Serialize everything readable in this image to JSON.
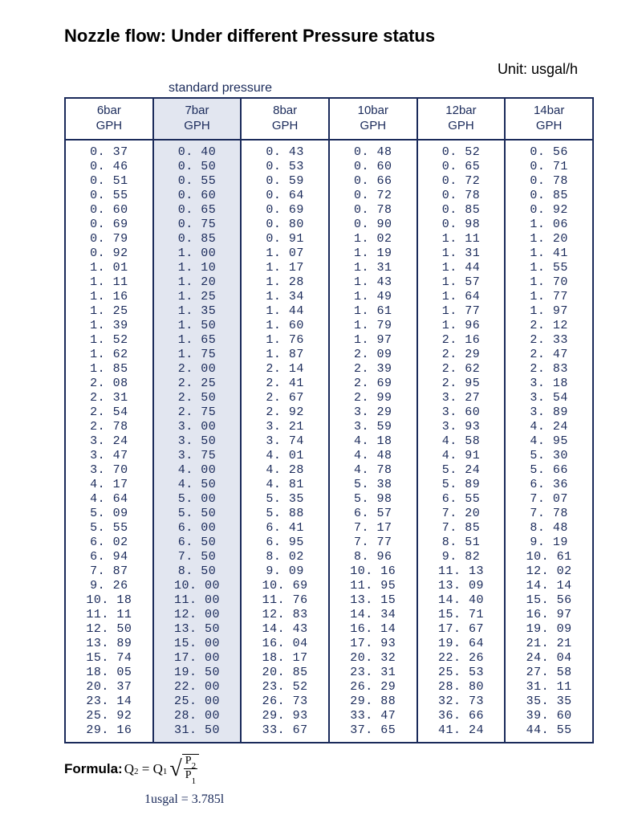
{
  "title": "Nozzle flow: Under different Pressure status",
  "unit_label": "Unit: usgal/h",
  "standard_pressure_label": "standard pressure",
  "formula_label": "Formula:",
  "formula": {
    "lhs": "Q",
    "lhs_sub": "2",
    "q1": "Q",
    "q1_sub": "1",
    "num": "P",
    "num_sub": "2",
    "den": "P",
    "den_sub": "1"
  },
  "conversion": "1usgal = 3.785l",
  "table": {
    "highlight_col_index": 1,
    "highlight_bg": "#e2e6f0",
    "border_color": "#1a2a5a",
    "text_color": "#1a2a5a",
    "headers": [
      {
        "bar": "6bar",
        "unit": "GPH"
      },
      {
        "bar": "7bar",
        "unit": "GPH"
      },
      {
        "bar": "8bar",
        "unit": "GPH"
      },
      {
        "bar": "10bar",
        "unit": "GPH"
      },
      {
        "bar": "12bar",
        "unit": "GPH"
      },
      {
        "bar": "14bar",
        "unit": "GPH"
      }
    ],
    "rows": [
      [
        "0.37",
        "0.40",
        "0.43",
        "0.48",
        "0.52",
        "0.56"
      ],
      [
        "0.46",
        "0.50",
        "0.53",
        "0.60",
        "0.65",
        "0.71"
      ],
      [
        "0.51",
        "0.55",
        "0.59",
        "0.66",
        "0.72",
        "0.78"
      ],
      [
        "0.55",
        "0.60",
        "0.64",
        "0.72",
        "0.78",
        "0.85"
      ],
      [
        "0.60",
        "0.65",
        "0.69",
        "0.78",
        "0.85",
        "0.92"
      ],
      [
        "0.69",
        "0.75",
        "0.80",
        "0.90",
        "0.98",
        "1.06"
      ],
      [
        "0.79",
        "0.85",
        "0.91",
        "1.02",
        "1.11",
        "1.20"
      ],
      [
        "0.92",
        "1.00",
        "1.07",
        "1.19",
        "1.31",
        "1.41"
      ],
      [
        "1.01",
        "1.10",
        "1.17",
        "1.31",
        "1.44",
        "1.55"
      ],
      [
        "1.11",
        "1.20",
        "1.28",
        "1.43",
        "1.57",
        "1.70"
      ],
      [
        "1.16",
        "1.25",
        "1.34",
        "1.49",
        "1.64",
        "1.77"
      ],
      [
        "1.25",
        "1.35",
        "1.44",
        "1.61",
        "1.77",
        "1.97"
      ],
      [
        "1.39",
        "1.50",
        "1.60",
        "1.79",
        "1.96",
        "2.12"
      ],
      [
        "1.52",
        "1.65",
        "1.76",
        "1.97",
        "2.16",
        "2.33"
      ],
      [
        "1.62",
        "1.75",
        "1.87",
        "2.09",
        "2.29",
        "2.47"
      ],
      [
        "1.85",
        "2.00",
        "2.14",
        "2.39",
        "2.62",
        "2.83"
      ],
      [
        "2.08",
        "2.25",
        "2.41",
        "2.69",
        "2.95",
        "3.18"
      ],
      [
        "2.31",
        "2.50",
        "2.67",
        "2.99",
        "3.27",
        "3.54"
      ],
      [
        "2.54",
        "2.75",
        "2.92",
        "3.29",
        "3.60",
        "3.89"
      ],
      [
        "2.78",
        "3.00",
        "3.21",
        "3.59",
        "3.93",
        "4.24"
      ],
      [
        "3.24",
        "3.50",
        "3.74",
        "4.18",
        "4.58",
        "4.95"
      ],
      [
        "3.47",
        "3.75",
        "4.01",
        "4.48",
        "4.91",
        "5.30"
      ],
      [
        "3.70",
        "4.00",
        "4.28",
        "4.78",
        "5.24",
        "5.66"
      ],
      [
        "4.17",
        "4.50",
        "4.81",
        "5.38",
        "5.89",
        "6.36"
      ],
      [
        "4.64",
        "5.00",
        "5.35",
        "5.98",
        "6.55",
        "7.07"
      ],
      [
        "5.09",
        "5.50",
        "5.88",
        "6.57",
        "7.20",
        "7.78"
      ],
      [
        "5.55",
        "6.00",
        "6.41",
        "7.17",
        "7.85",
        "8.48"
      ],
      [
        "6.02",
        "6.50",
        "6.95",
        "7.77",
        "8.51",
        "9.19"
      ],
      [
        "6.94",
        "7.50",
        "8.02",
        "8.96",
        "9.82",
        "10.61"
      ],
      [
        "7.87",
        "8.50",
        "9.09",
        "10.16",
        "11.13",
        "12.02"
      ],
      [
        "9.26",
        "10.00",
        "10.69",
        "11.95",
        "13.09",
        "14.14"
      ],
      [
        "10.18",
        "11.00",
        "11.76",
        "13.15",
        "14.40",
        "15.56"
      ],
      [
        "11.11",
        "12.00",
        "12.83",
        "14.34",
        "15.71",
        "16.97"
      ],
      [
        "12.50",
        "13.50",
        "14.43",
        "16.14",
        "17.67",
        "19.09"
      ],
      [
        "13.89",
        "15.00",
        "16.04",
        "17.93",
        "19.64",
        "21.21"
      ],
      [
        "15.74",
        "17.00",
        "18.17",
        "20.32",
        "22.26",
        "24.04"
      ],
      [
        "18.05",
        "19.50",
        "20.85",
        "23.31",
        "25.53",
        "27.58"
      ],
      [
        "20.37",
        "22.00",
        "23.52",
        "26.29",
        "28.80",
        "31.11"
      ],
      [
        "23.14",
        "25.00",
        "26.73",
        "29.88",
        "32.73",
        "35.35"
      ],
      [
        "25.92",
        "28.00",
        "29.93",
        "33.47",
        "36.66",
        "39.60"
      ],
      [
        "29.16",
        "31.50",
        "33.67",
        "37.65",
        "41.24",
        "44.55"
      ]
    ]
  }
}
